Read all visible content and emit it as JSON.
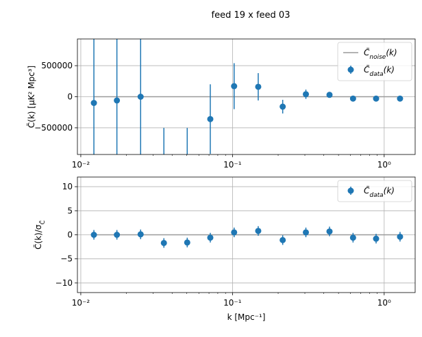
{
  "figure": {
    "suptitle": "feed 19 x feed 03"
  },
  "chart_data": [
    {
      "type": "scatter",
      "panel": "top",
      "ylabel": "C̃(k) [μK² Mpc³]",
      "xlabel": "",
      "xscale": "log",
      "xlim": [
        0.0095,
        1.6
      ],
      "ylim": [
        -930000,
        930000
      ],
      "grid": true,
      "legend_position": "top-right",
      "x_ticks": [
        {
          "value": 0.01,
          "label": "10⁻²"
        },
        {
          "value": 0.1,
          "label": "10⁻¹"
        },
        {
          "value": 1,
          "label": "10⁰"
        }
      ],
      "y_ticks": [
        {
          "value": 500000,
          "label": "500000"
        },
        {
          "value": 0,
          "label": "0"
        },
        {
          "value": -500000,
          "label": "−500000"
        }
      ],
      "series": [
        {
          "name": "C̃_noise(k)",
          "kind": "line",
          "color": "#999999",
          "x": [
            0.0122,
            1.28
          ],
          "y": [
            0,
            0
          ]
        },
        {
          "name": "C̃_data(k)",
          "kind": "errorbar",
          "color": "#1f77b4",
          "x": [
            0.0122,
            0.0173,
            0.0248,
            0.0353,
            0.0503,
            0.0714,
            0.1025,
            0.1478,
            0.2143,
            0.3047,
            0.4361,
            0.6233,
            0.8845,
            1.272
          ],
          "y": [
            -100000,
            -60000,
            0,
            null,
            null,
            -360000,
            170000,
            160000,
            -160000,
            40000,
            30000,
            -30000,
            -30000,
            -30000
          ],
          "err": [
            1400000,
            1400000,
            1100000,
            1100000,
            1100000,
            560000,
            370000,
            220000,
            110000,
            75000,
            40000,
            8000,
            6000,
            5000
          ]
        }
      ]
    },
    {
      "type": "scatter",
      "panel": "bottom",
      "ylabel": "C̃(k)/σ_C̃",
      "xlabel": "k [Mpc⁻¹]",
      "xscale": "log",
      "xlim": [
        0.0095,
        1.6
      ],
      "ylim": [
        -12,
        12
      ],
      "grid": true,
      "legend_position": "top-right",
      "x_ticks": [
        {
          "value": 0.01,
          "label": "10⁻²"
        },
        {
          "value": 0.1,
          "label": "10⁻¹"
        },
        {
          "value": 1,
          "label": "10⁰"
        }
      ],
      "y_ticks": [
        {
          "value": 10,
          "label": "10"
        },
        {
          "value": 5,
          "label": "5"
        },
        {
          "value": 0,
          "label": "0"
        },
        {
          "value": -5,
          "label": "−5"
        },
        {
          "value": -10,
          "label": "−10"
        }
      ],
      "series": [
        {
          "name": "",
          "kind": "line",
          "color": "#999999",
          "x": [
            0.0122,
            1.28
          ],
          "y": [
            0,
            0
          ]
        },
        {
          "name": "C̃_data(k)",
          "kind": "errorbar",
          "color": "#1f77b4",
          "x": [
            0.0122,
            0.0173,
            0.0248,
            0.0353,
            0.0503,
            0.0714,
            0.1025,
            0.1478,
            0.2143,
            0.3047,
            0.4361,
            0.6233,
            0.8845,
            1.272
          ],
          "y": [
            0.0,
            0.0,
            0.1,
            -1.7,
            -1.6,
            -0.6,
            0.5,
            0.8,
            -1.1,
            0.5,
            0.7,
            -0.6,
            -0.8,
            -0.4
          ],
          "err": [
            1,
            1,
            1,
            1,
            1,
            1,
            1,
            1,
            1,
            1,
            1,
            1,
            1,
            1
          ]
        }
      ]
    }
  ]
}
